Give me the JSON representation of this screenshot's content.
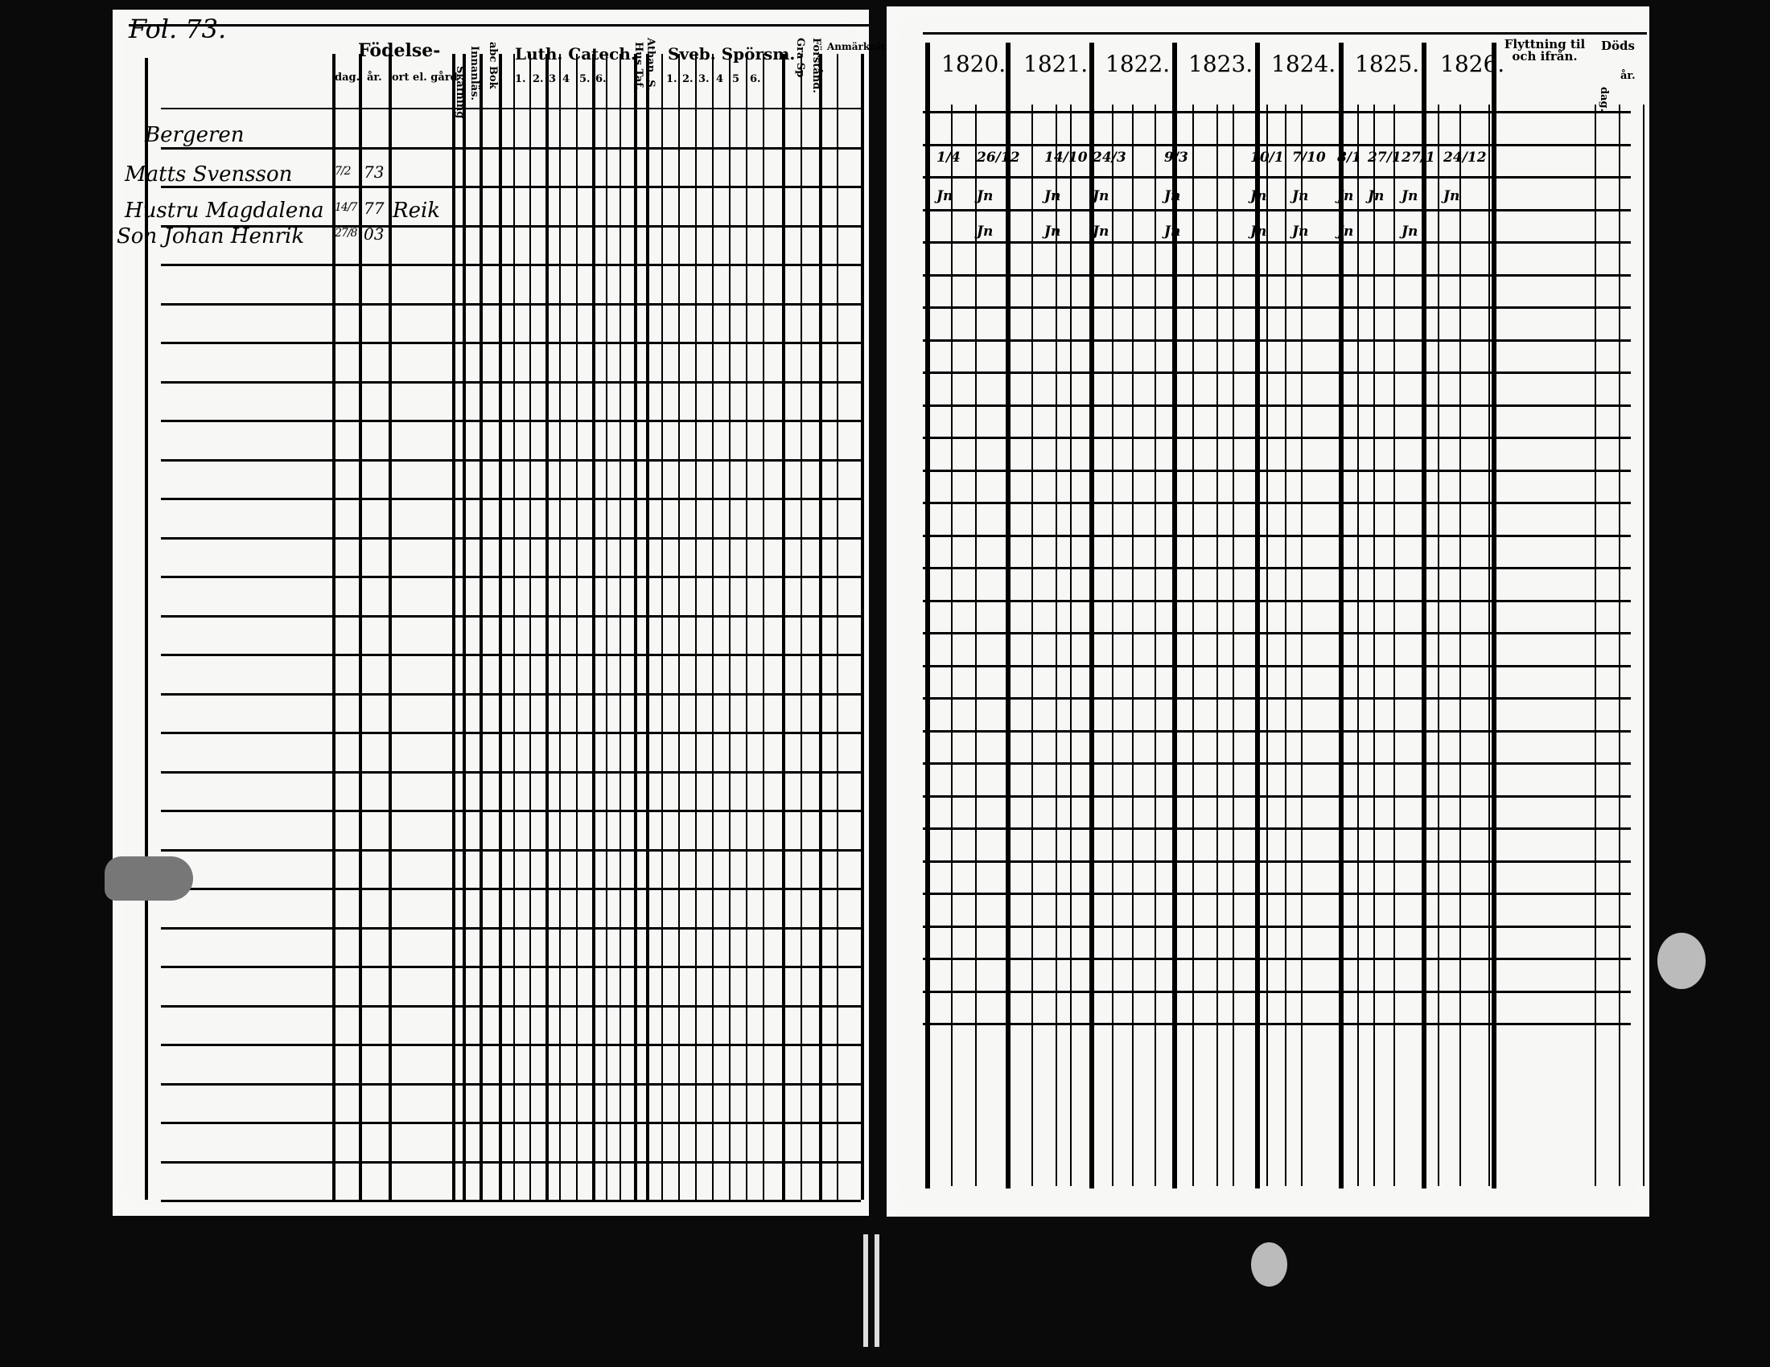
{
  "left_page": {
    "folio": "Fol. 73.",
    "headers": {
      "birth": "Födelse-",
      "day": "dag.",
      "year": "år.",
      "place": "ort el. gård",
      "vaccination": "Skafning",
      "inner_reading": "Innanläs.",
      "abc_book": "abc Bok",
      "luth_catech": "Luth. Catech.",
      "luth_cols": [
        "1.",
        "2.",
        "3",
        "4",
        "5.",
        "6."
      ],
      "hus_tafla": "Hus Taf.",
      "athan": "Athan. S.",
      "sveb_sporsm": "Sveb. Spörsm.",
      "sveb_cols": [
        "1.",
        "2.",
        "3.",
        "4",
        "5",
        "6."
      ],
      "gra_sp": "Gra Sp",
      "forstand": "Förstånd.",
      "remarks": "Anmärkningar."
    },
    "entries": [
      {
        "name": "Bergeren",
        "day": "",
        "year": "",
        "place": ""
      },
      {
        "name": "Matts Svensson",
        "day": "7/2",
        "year": "73",
        "place": ""
      },
      {
        "name": "Hustru Magdalena",
        "day": "14/7",
        "year": "77",
        "place": "Reik"
      },
      {
        "name": "Son Johan Henrik",
        "day": "27/8",
        "year": "03",
        "place": ""
      }
    ]
  },
  "right_page": {
    "years": [
      "1820.",
      "1821.",
      "1822.",
      "1823.",
      "1824.",
      "1825.",
      "1826."
    ],
    "moving": "Flyttning til och ifrån.",
    "death": "Döds",
    "death_day": "dag.",
    "death_year": "år.",
    "marks_row1": [
      "1/4",
      "26/12",
      "14/10",
      "24/3",
      "9/3",
      "10/1",
      "7/10",
      "8/1",
      "27/1",
      "27/1",
      "24/12"
    ],
    "marks_row2": [
      "Jn",
      "Jn",
      "Jn",
      "Jn",
      "Jn",
      "Jn",
      "Jn",
      "Jn",
      "Jn",
      "Jn",
      "Jn"
    ],
    "marks_row3": [
      "Jn",
      "Jn",
      "Jn",
      "Jn",
      "Jn",
      "Jn",
      "Jn",
      "Jn"
    ]
  }
}
